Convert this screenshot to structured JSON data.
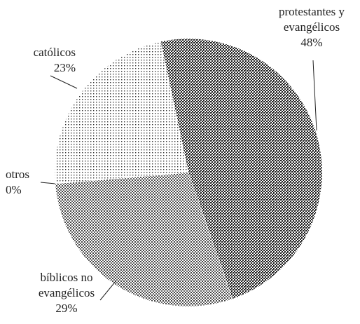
{
  "chart_data": {
    "type": "pie",
    "categories": [
      "protestantes y evangélicos",
      "bíblicos no evangélicos",
      "otros",
      "católicos"
    ],
    "values": [
      48,
      29,
      0,
      23
    ],
    "value_labels": [
      "48%",
      "29%",
      "0%",
      "23%"
    ]
  }
}
